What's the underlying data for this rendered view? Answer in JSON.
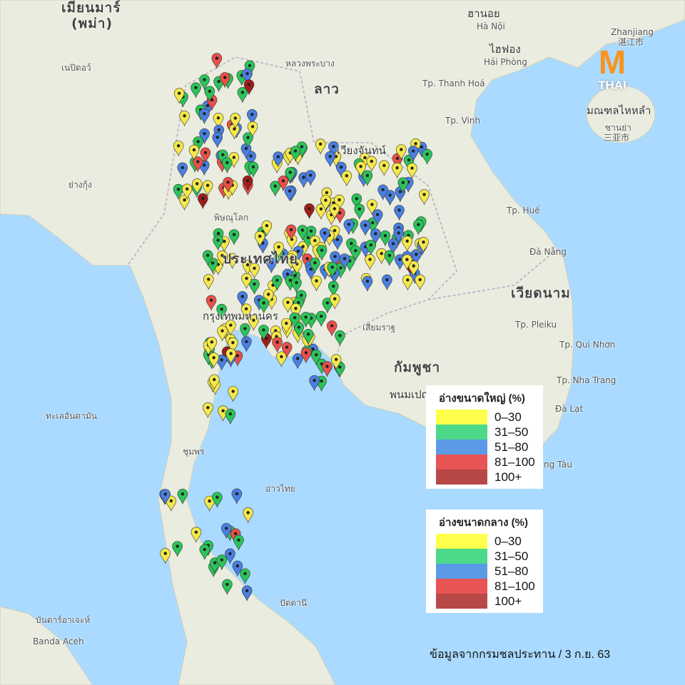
{
  "map_labels": {
    "myanmar": "เมียนมาร์",
    "myanmar_sub": "(พม่า)",
    "hanoi": "ฮานอย",
    "hanoi_en": "Hà Nội",
    "haiphong": "ไฮฟอง",
    "haiphong_en": "Hải Phòng",
    "zhanjiang": "Zhanjiang",
    "zhanjiang_cn": "湛江市",
    "hainan": "มณฑลไหหลำ",
    "sanya": "ซานย่า",
    "sanya_cn": "三亚市",
    "laos": "ลาว",
    "luangprabang": "หลวงพระบาง",
    "vientiane": "เวียงจันทน์",
    "thanhhoa": "Tp. Thanh Hoá",
    "vinh": "Tp. Vinh",
    "hue": "Tp. Huế",
    "danang": "Đà Nẵng",
    "vietnam": "เวียดนาม",
    "pleiku": "Tp. Pleiku",
    "quinhon": "Tp. Qui Nhơn",
    "nhatrang": "Tp. Nha Trang",
    "dalat": "Đà Lạt",
    "vungtau": "ng Tàu",
    "thailand": "ประเทศไทย",
    "bangkok": "กรุงเทพมหานคร",
    "cambodia": "กัมพูชา",
    "phnompenh": "พนมเปญ",
    "siemreap": "เสียมราฐ",
    "naypyidaw": "เนปิดอว์",
    "yangon": "ย่างกุ้ง",
    "andaman": "ทะเลอันดามัน",
    "gulf": "อ่าวไทย",
    "bandaaceh": "Banda Aceh",
    "bandaaceh_th": "บันดาร์อาเจะห์",
    "chumphon": "ชุมพร",
    "phitsanulok": "พิษณุโลก",
    "pattani": "ปัตตานี"
  },
  "logo": {
    "letter": "M",
    "text": "THAI"
  },
  "legends": [
    {
      "title": "อ่างขนาดใหญ่ (%)",
      "items": [
        {
          "label": "0–30",
          "color": "#ffff4d"
        },
        {
          "label": "31–50",
          "color": "#4cd98a"
        },
        {
          "label": "51–80",
          "color": "#5b9be6"
        },
        {
          "label": "81–100",
          "color": "#e85454"
        },
        {
          "label": "100+",
          "color": "#b84848"
        }
      ]
    },
    {
      "title": "อ่างขนาดกลาง (%)",
      "items": [
        {
          "label": "0–30",
          "color": "#ffff4d"
        },
        {
          "label": "31–50",
          "color": "#4cd98a"
        },
        {
          "label": "51–80",
          "color": "#5b9be6"
        },
        {
          "label": "81–100",
          "color": "#e85454"
        },
        {
          "label": "100+",
          "color": "#b84848"
        }
      ]
    }
  ],
  "pin_colors": {
    "0-30": "#f5e84a",
    "31-50": "#2cc35a",
    "51-80": "#4a7fe0",
    "81-100": "#e8504a",
    "100+": "#a01c1c"
  },
  "source": "ข้อมูลจากกรมชลประทาน / 3 ก.ย.  63"
}
